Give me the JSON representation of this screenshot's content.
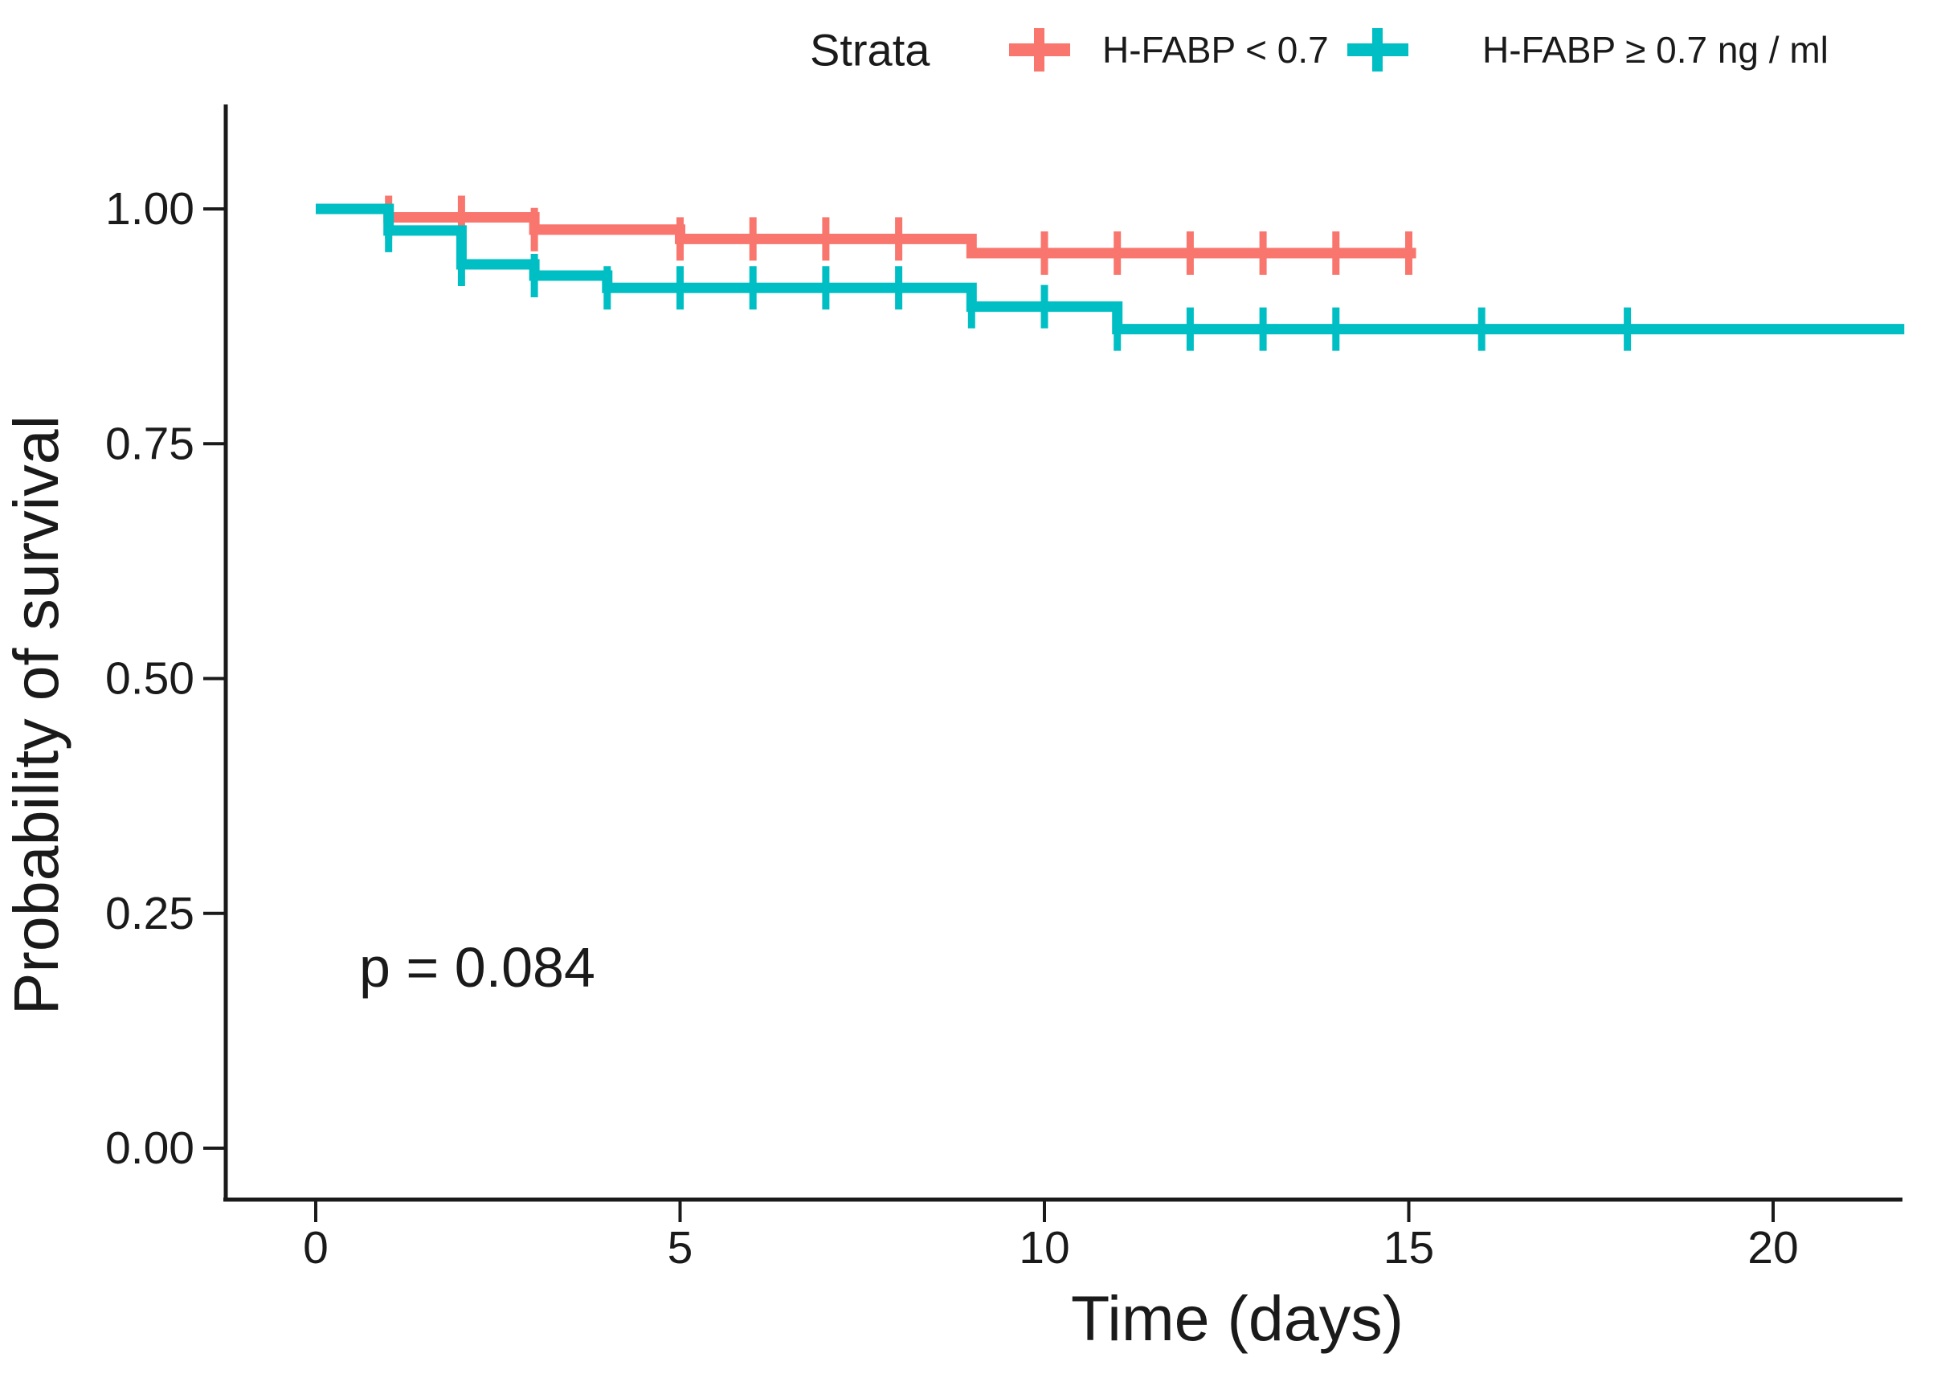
{
  "legend": {
    "title": "Strata",
    "items": [
      {
        "label": "H-FABP < 0.7",
        "color": "#F8766D"
      },
      {
        "label": "H-FABP ≥ 0.7 ng / ml",
        "color": "#00BFC4"
      }
    ]
  },
  "chart_data": {
    "type": "line",
    "subtype": "kaplan-meier-step",
    "title": "",
    "xlabel": "Time (days)",
    "ylabel": "Probability of survival",
    "xlim": [
      0,
      22
    ],
    "ylim": [
      0,
      1.0
    ],
    "grid": false,
    "legend_position": "top",
    "x_ticks": [
      0,
      5,
      10,
      15,
      20
    ],
    "x_tick_labels": [
      "0",
      "5",
      "10",
      "15",
      "20"
    ],
    "y_ticks": [
      0,
      0.25,
      0.5,
      0.75,
      1
    ],
    "y_tick_labels": [
      "0.00",
      "0.25",
      "0.50",
      "0.75",
      "1.00"
    ],
    "p_value_text": "p = 0.084",
    "series": [
      {
        "name": "H-FABP < 0.7",
        "color": "#F8766D",
        "steps": [
          [
            0,
            1.0
          ],
          [
            1,
            0.991
          ],
          [
            3,
            0.978
          ],
          [
            5,
            0.968
          ],
          [
            9,
            0.953
          ]
        ],
        "end_time": 15.1,
        "censor_marks": [
          [
            1,
            0.991
          ],
          [
            2,
            0.991
          ],
          [
            3,
            0.978
          ],
          [
            5,
            0.968
          ],
          [
            6,
            0.968
          ],
          [
            7,
            0.968
          ],
          [
            8,
            0.968
          ],
          [
            10,
            0.953
          ],
          [
            11,
            0.953
          ],
          [
            12,
            0.953
          ],
          [
            13,
            0.953
          ],
          [
            14,
            0.953
          ],
          [
            15,
            0.953
          ]
        ]
      },
      {
        "name": "H-FABP ≥ 0.7 ng / ml",
        "color": "#00BFC4",
        "steps": [
          [
            0,
            1.0
          ],
          [
            1,
            0.977
          ],
          [
            2,
            0.941
          ],
          [
            3,
            0.929
          ],
          [
            4,
            0.916
          ],
          [
            9,
            0.896
          ],
          [
            11,
            0.872
          ]
        ],
        "end_time": 21.8,
        "censor_marks": [
          [
            1,
            0.977
          ],
          [
            2,
            0.941
          ],
          [
            3,
            0.929
          ],
          [
            4,
            0.916
          ],
          [
            5,
            0.916
          ],
          [
            6,
            0.916
          ],
          [
            7,
            0.916
          ],
          [
            8,
            0.916
          ],
          [
            9,
            0.896
          ],
          [
            10,
            0.896
          ],
          [
            11,
            0.872
          ],
          [
            12,
            0.872
          ],
          [
            13,
            0.872
          ],
          [
            14,
            0.872
          ],
          [
            16,
            0.872
          ],
          [
            18,
            0.872
          ]
        ]
      }
    ]
  }
}
